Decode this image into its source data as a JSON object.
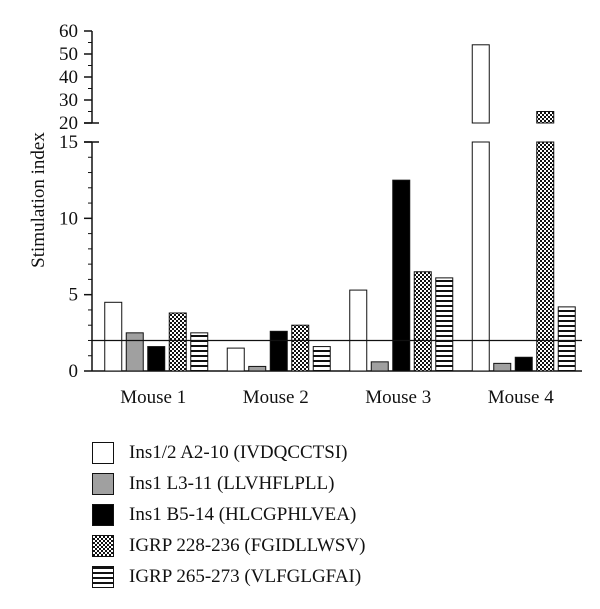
{
  "chart_data": {
    "type": "bar",
    "ylabel": "Stimulation index",
    "xlabel": "",
    "categories": [
      "Mouse 1",
      "Mouse 2",
      "Mouse 3",
      "Mouse 4"
    ],
    "series": [
      {
        "name": "Ins1/2 A2-10 (IVDQCCTSI)",
        "pattern": "white",
        "values": [
          4.5,
          1.5,
          5.3,
          54
        ]
      },
      {
        "name": "Ins1 L3-11 (LLVHFLPLL)",
        "pattern": "gray",
        "values": [
          2.5,
          0.3,
          0.6,
          0.5
        ]
      },
      {
        "name": "Ins1 B5-14 (HLCGPHLVEA)",
        "pattern": "black",
        "values": [
          1.6,
          2.6,
          12.5,
          0.9
        ]
      },
      {
        "name": "IGRP 228-236 (FGIDLLWSV)",
        "pattern": "checker",
        "values": [
          3.8,
          3.0,
          6.5,
          25
        ]
      },
      {
        "name": "IGRP 265-273 (VLFGLGFAI)",
        "pattern": "horizontal",
        "values": [
          2.5,
          1.6,
          6.1,
          4.2
        ]
      }
    ],
    "y_axis_lower": {
      "range": [
        0,
        15
      ],
      "tick_labels": [
        "0",
        "5",
        "10",
        "15"
      ]
    },
    "y_axis_upper": {
      "range": [
        20,
        60
      ],
      "tick_labels": [
        "20",
        "30",
        "40",
        "50",
        "60"
      ]
    },
    "y_axis_break": [
      15,
      20
    ],
    "threshold_line": 2,
    "grid": false,
    "legend_position": "bottom"
  }
}
